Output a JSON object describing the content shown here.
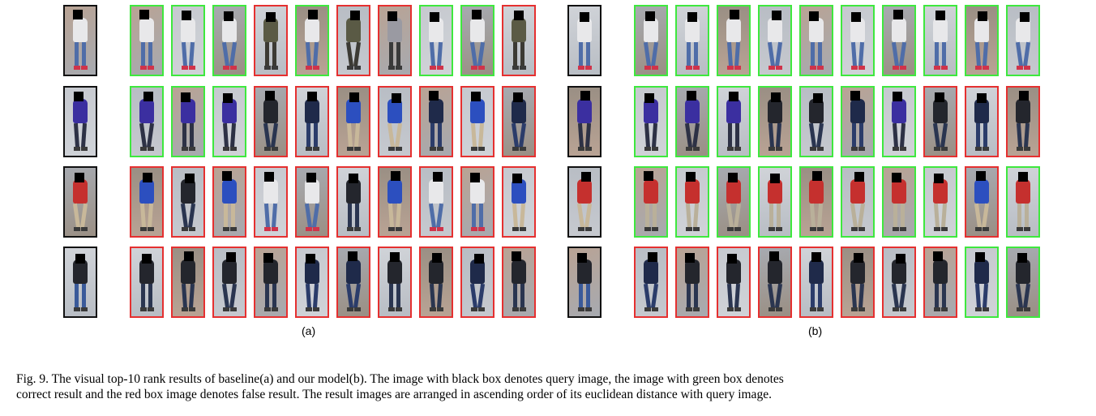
{
  "figure": {
    "sublabels": [
      "(a)",
      "(b)"
    ],
    "caption_lines": [
      "Fig. 9.  The visual top-10 rank results of baseline(a) and our model(b). The image with black box denotes query image, the image with green box denotes",
      "correct result and the red box image denotes false result. The result images are arranged in ascending order of its euclidean distance with query image."
    ],
    "legend_colors": {
      "query": "#111111",
      "correct": "#3ee83e",
      "false": "#e53030"
    },
    "panels": [
      {
        "id": "a",
        "rows": [
          {
            "query": {
              "person": "white-top-red-shoes"
            },
            "results": [
              "correct",
              "correct",
              "correct",
              "false",
              "correct",
              "false",
              "false",
              "correct",
              "correct",
              "false"
            ],
            "people": [
              "white",
              "white",
              "white",
              "olive",
              "white",
              "olive",
              "gray",
              "white",
              "white",
              "olive"
            ]
          },
          {
            "query": {
              "person": "purple-backpack"
            },
            "results": [
              "correct",
              "correct",
              "correct",
              "false",
              "false",
              "false",
              "false",
              "false",
              "false",
              "false"
            ],
            "people": [
              "purple",
              "purple",
              "purple",
              "dark",
              "navy",
              "blue",
              "blue",
              "navy",
              "blue",
              "navy"
            ]
          },
          {
            "query": {
              "person": "blue-red-top"
            },
            "results": [
              "false",
              "false",
              "false",
              "false",
              "false",
              "false",
              "false",
              "false",
              "false",
              "false"
            ],
            "people": [
              "blue",
              "dark",
              "blue",
              "white",
              "white",
              "dark",
              "blue",
              "white",
              "white",
              "blue"
            ]
          },
          {
            "query": {
              "person": "dark-jacket"
            },
            "results": [
              "false",
              "false",
              "false",
              "false",
              "false",
              "false",
              "false",
              "false",
              "false",
              "false"
            ],
            "people": [
              "dark",
              "dark",
              "dark",
              "dark",
              "navy",
              "navy",
              "dark",
              "dark",
              "navy",
              "dark"
            ]
          }
        ]
      },
      {
        "id": "b",
        "rows": [
          {
            "query": {
              "person": "white-top-red-shoes"
            },
            "results": [
              "correct",
              "correct",
              "correct",
              "correct",
              "correct",
              "correct",
              "correct",
              "correct",
              "correct",
              "correct"
            ],
            "people": [
              "white",
              "white",
              "white",
              "white",
              "white",
              "white",
              "white",
              "white",
              "white",
              "white"
            ]
          },
          {
            "query": {
              "person": "purple-backpack"
            },
            "results": [
              "correct",
              "correct",
              "correct",
              "correct",
              "correct",
              "correct",
              "correct",
              "false",
              "false",
              "false"
            ],
            "people": [
              "purple",
              "purple",
              "purple",
              "dark",
              "dark",
              "navy",
              "purple",
              "dark",
              "navy",
              "dark"
            ]
          },
          {
            "query": {
              "person": "blue-red-top"
            },
            "results": [
              "correct",
              "correct",
              "correct",
              "correct",
              "correct",
              "correct",
              "correct",
              "correct",
              "false",
              "correct"
            ],
            "people": [
              "red",
              "red",
              "red",
              "red",
              "red",
              "red",
              "red",
              "red",
              "blue",
              "red"
            ]
          },
          {
            "query": {
              "person": "dark-jacket"
            },
            "results": [
              "false",
              "false",
              "false",
              "false",
              "false",
              "false",
              "false",
              "false",
              "correct",
              "correct"
            ],
            "people": [
              "navy",
              "dark",
              "dark",
              "dark",
              "navy",
              "dark",
              "dark",
              "dark",
              "navy",
              "dark"
            ]
          }
        ]
      }
    ]
  }
}
